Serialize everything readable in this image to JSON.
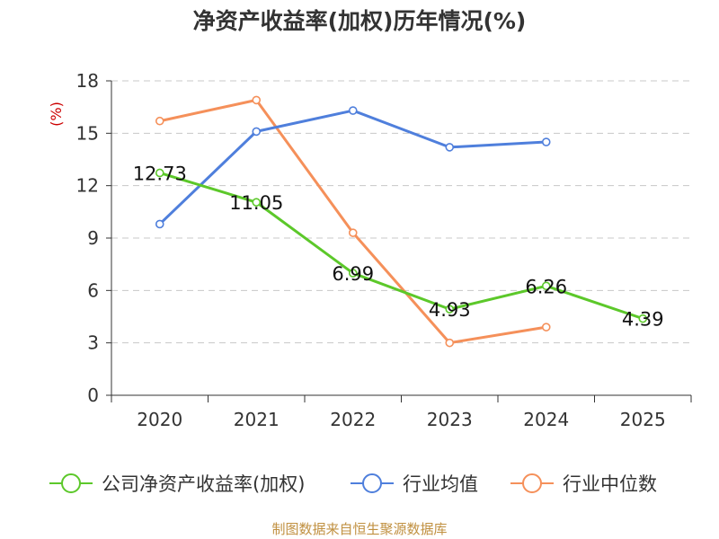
{
  "chart_data": {
    "type": "line",
    "title": "净资产收益率(加权)历年情况(%)",
    "ylabel": "(%)",
    "xlabel": "",
    "categories": [
      "2020",
      "2021",
      "2022",
      "2023",
      "2024",
      "2025"
    ],
    "y_ticks": [
      "0",
      "3",
      "6",
      "9",
      "12",
      "15",
      "18"
    ],
    "ylim": [
      0,
      18
    ],
    "grid": true,
    "legend_position": "bottom",
    "series": [
      {
        "name": "公司净资产收益率(加权)",
        "color": "#5cc82a",
        "values": [
          12.73,
          11.05,
          6.99,
          4.93,
          6.26,
          4.39
        ],
        "labels": [
          "12.73",
          "11.05",
          "6.99",
          "4.93",
          "6.26",
          "4.39"
        ]
      },
      {
        "name": "行业均值",
        "color": "#4f7fdc",
        "values": [
          9.8,
          15.1,
          16.3,
          14.2,
          14.5,
          null
        ]
      },
      {
        "name": "行业中位数",
        "color": "#f5905a",
        "values": [
          15.7,
          16.9,
          9.3,
          3.0,
          3.9,
          null
        ]
      }
    ]
  },
  "source": "制图数据来自恒生聚源数据库"
}
